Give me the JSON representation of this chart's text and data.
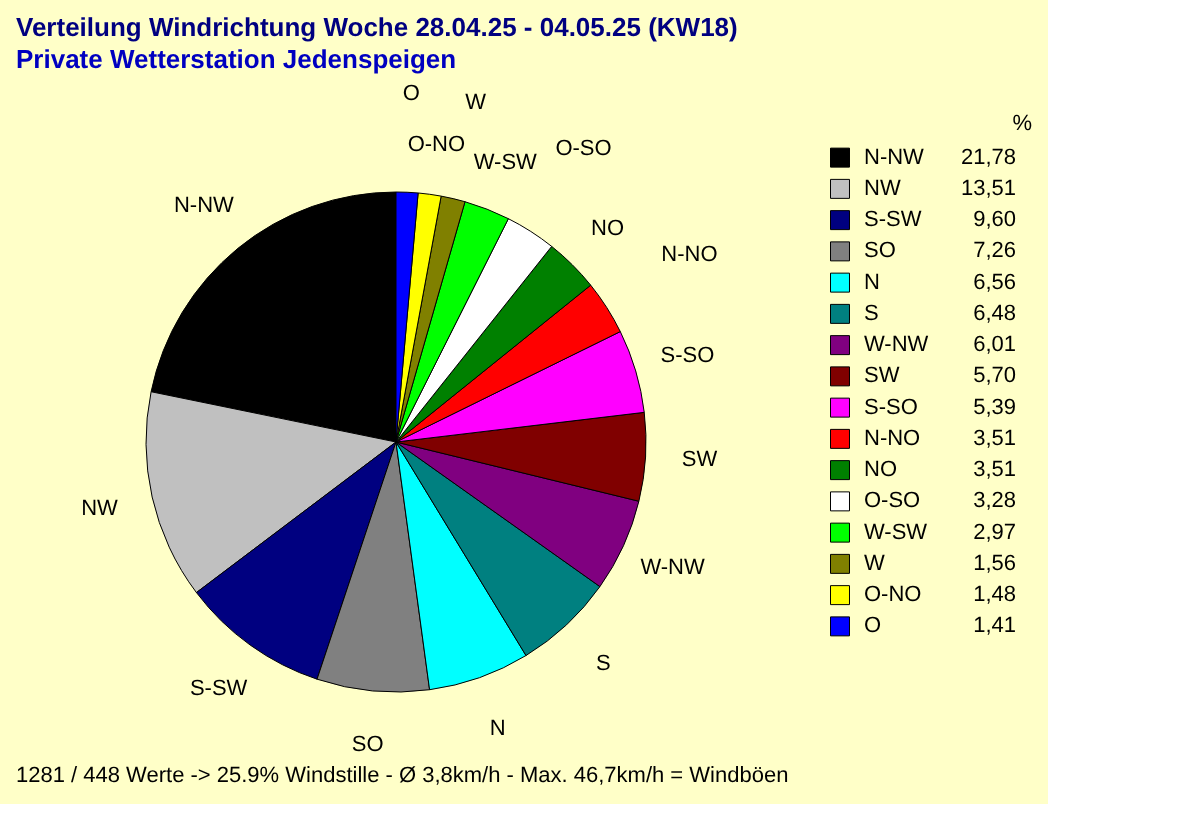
{
  "chart_data": {
    "type": "pie",
    "title": "Verteilung Windrichtung   Woche 28.04.25 - 04.05.25 (KW18)",
    "subtitle": "Private Wetterstation Jedenspeigen",
    "categories": [
      "N-NW",
      "NW",
      "S-SW",
      "SO",
      "N",
      "S",
      "W-NW",
      "SW",
      "S-SO",
      "N-NO",
      "NO",
      "O-SO",
      "W-SW",
      "W",
      "O-NO",
      "O"
    ],
    "values": [
      21.78,
      13.51,
      9.6,
      7.26,
      6.56,
      6.48,
      6.01,
      5.7,
      5.39,
      3.51,
      3.51,
      3.28,
      2.97,
      1.56,
      1.48,
      1.41
    ],
    "colors": [
      "#000000",
      "#c0c0c0",
      "#000080",
      "#808080",
      "#00ffff",
      "#008080",
      "#800080",
      "#800000",
      "#ff00ff",
      "#ff0000",
      "#008000",
      "#ffffff",
      "#00ff00",
      "#808000",
      "#ffff00",
      "#0000ff"
    ],
    "value_labels": [
      "21,78",
      "13,51",
      "9,60",
      "7,26",
      "6,56",
      "6,48",
      "6,01",
      "5,70",
      "5,39",
      "3,51",
      "3,51",
      "3,28",
      "2,97",
      "1,56",
      "1,48",
      "1,41"
    ],
    "legend_title": "%",
    "legend": "right",
    "annotations": [
      "1281 / 448 Werte  -> 25.9% Windstille   -   Ø 3,8km/h  -  Max. 46,7km/h = Windböen"
    ]
  }
}
